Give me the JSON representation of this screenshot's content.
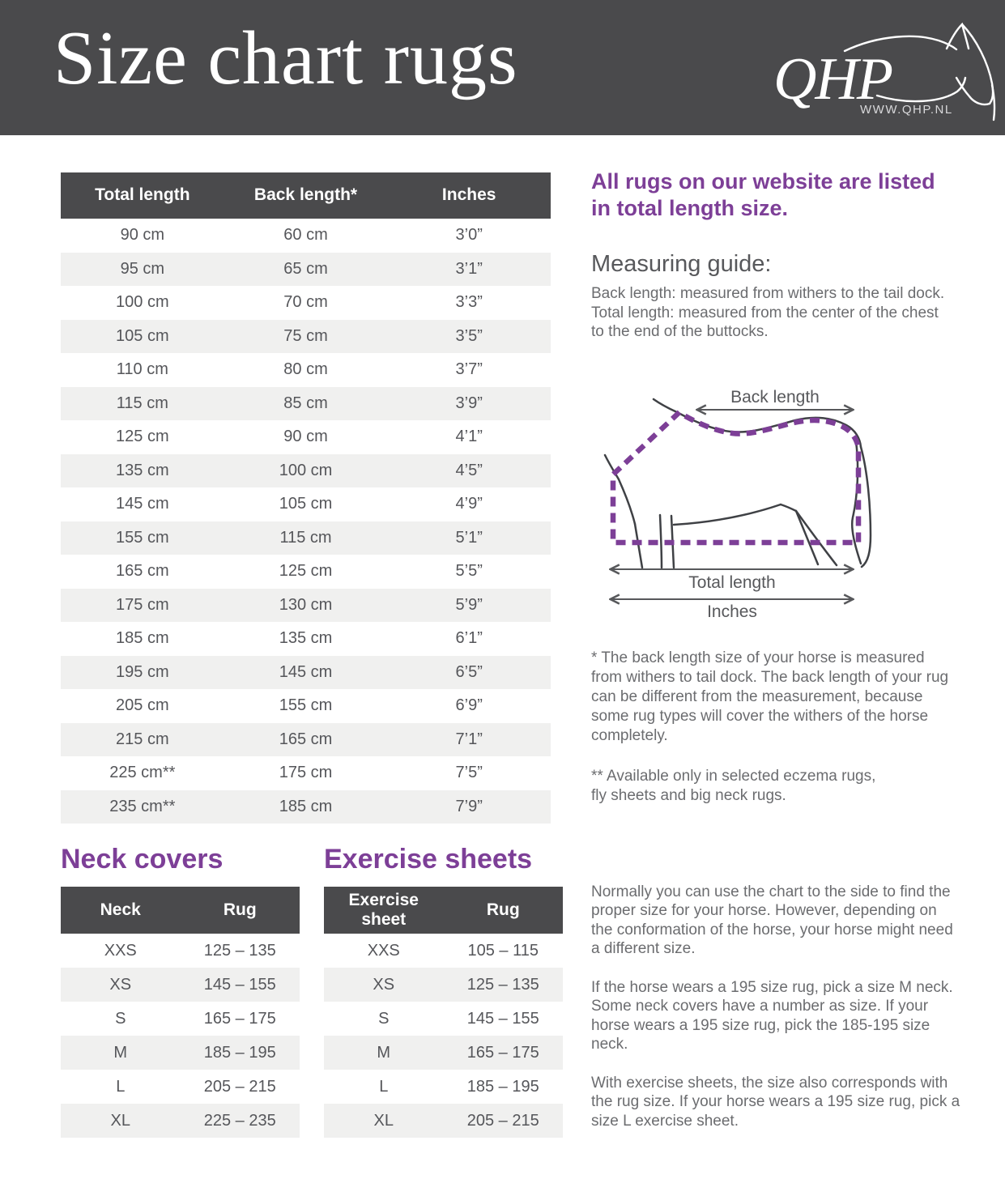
{
  "header": {
    "title": "Size chart rugs",
    "logo": {
      "text": "QHP",
      "url": "WWW.QHP.NL"
    }
  },
  "main_table": {
    "columns": [
      "Total length",
      "Back length*",
      "Inches"
    ],
    "rows": [
      [
        "90 cm",
        "60 cm",
        "3’0”"
      ],
      [
        "95 cm",
        "65 cm",
        "3’1”"
      ],
      [
        "100 cm",
        "70 cm",
        "3’3”"
      ],
      [
        "105 cm",
        "75 cm",
        "3’5”"
      ],
      [
        "110 cm",
        "80 cm",
        "3’7”"
      ],
      [
        "115 cm",
        "85 cm",
        "3’9”"
      ],
      [
        "125 cm",
        "90 cm",
        "4’1”"
      ],
      [
        "135 cm",
        "100 cm",
        "4’5”"
      ],
      [
        "145 cm",
        "105 cm",
        "4’9”"
      ],
      [
        "155 cm",
        "115 cm",
        "5’1”"
      ],
      [
        "165 cm",
        "125 cm",
        "5’5”"
      ],
      [
        "175 cm",
        "130 cm",
        "5’9”"
      ],
      [
        "185 cm",
        "135 cm",
        "6’1”"
      ],
      [
        "195 cm",
        "145 cm",
        "6’5”"
      ],
      [
        "205 cm",
        "155 cm",
        "6’9”"
      ],
      [
        "215 cm",
        "165 cm",
        "7’1”"
      ],
      [
        "225 cm**",
        "175 cm",
        "7’5”"
      ],
      [
        "235 cm**",
        "185 cm",
        "7’9”"
      ]
    ]
  },
  "sidebar": {
    "intro_heading": "All rugs on our website are listed in total length size.",
    "measuring_heading": "Measuring guide:",
    "measuring_line1": "Back length: measured from withers to the tail dock.",
    "measuring_line2": "Total length: measured from the center of the chest to the end of the buttocks.",
    "diagram_labels": {
      "back_length": "Back length",
      "total_length": "Total length",
      "inches": "Inches"
    },
    "footnote1": "* The back length size of your horse is measured from withers to tail dock. The back length of your rug can be different from the measurement, because some rug types will cover the withers of the horse completely.",
    "footnote2": "** Available only in selected eczema rugs,\nfly sheets and big neck rugs."
  },
  "neck_covers": {
    "heading": "Neck covers",
    "columns": [
      "Neck",
      "Rug"
    ],
    "rows": [
      [
        "XXS",
        "125 – 135"
      ],
      [
        "XS",
        "145 – 155"
      ],
      [
        "S",
        "165 – 175"
      ],
      [
        "M",
        "185 – 195"
      ],
      [
        "L",
        "205 – 215"
      ],
      [
        "XL",
        "225 – 235"
      ]
    ]
  },
  "exercise_sheets": {
    "heading": "Exercise sheets",
    "columns": [
      "Exercise sheet",
      "Rug"
    ],
    "rows": [
      [
        "XXS",
        "105 – 115"
      ],
      [
        "XS",
        "125 – 135"
      ],
      [
        "S",
        "145 – 155"
      ],
      [
        "M",
        "165 – 175"
      ],
      [
        "L",
        "185 – 195"
      ],
      [
        "XL",
        "205 – 215"
      ]
    ]
  },
  "bottom_text": {
    "para1": "Normally you can use the chart to the side to find the proper size for your horse.  However, depending on the conformation of the horse, your horse might need a different size.",
    "para2": "If the horse wears a 195 size rug, pick a size M neck. Some neck covers have a number as size. If your horse wears a 195 size rug, pick the 185-195 size neck.",
    "para3": "With exercise sheets, the size also corresponds with the rug size. If your horse wears a 195 size rug, pick a size L exercise sheet."
  },
  "colors": {
    "accent_purple": "#7d3f97",
    "header_dark": "#4a4a4c",
    "stripe_gray": "#f0f0ef",
    "text_gray": "#6b6c6f"
  }
}
